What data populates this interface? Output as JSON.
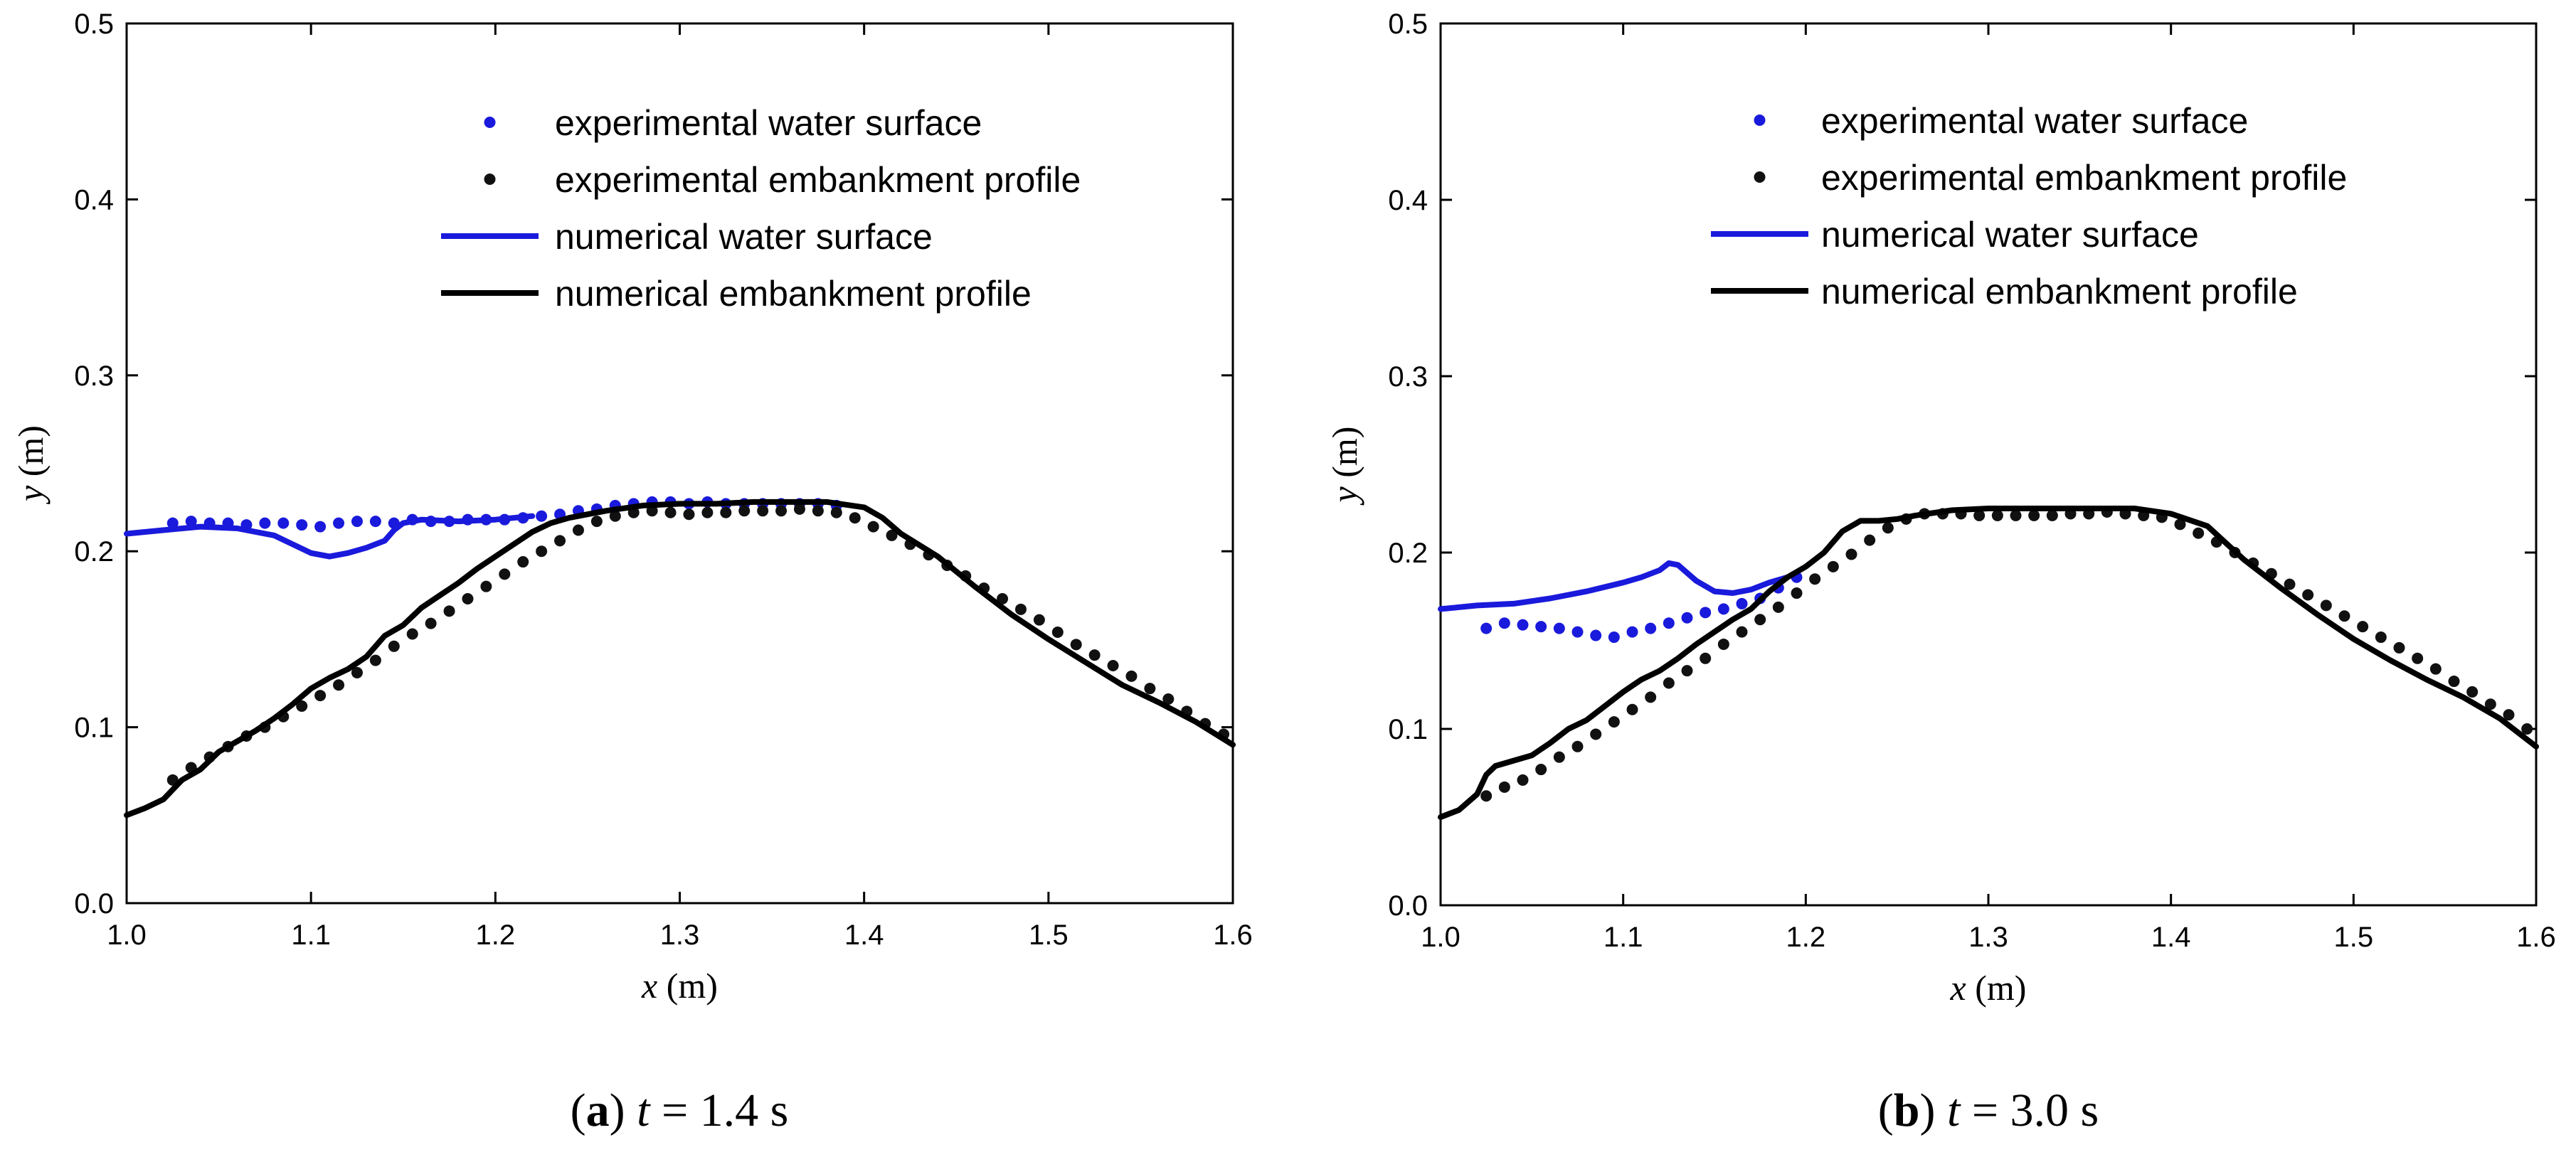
{
  "chart_data": [
    {
      "type": "line",
      "caption": {
        "label": "a",
        "time_var": "t",
        "time_rest": " = 1.4 s"
      },
      "xlabel": {
        "var": "x",
        "unit": " (m)"
      },
      "ylabel": {
        "var": "y",
        "unit": " (m)"
      },
      "xlim": [
        1.0,
        1.6
      ],
      "ylim": [
        0.0,
        0.5
      ],
      "xticks": [
        "1.0",
        "1.1",
        "1.2",
        "1.3",
        "1.4",
        "1.5",
        "1.6"
      ],
      "yticks": [
        "0.0",
        "0.1",
        "0.2",
        "0.3",
        "0.4",
        "0.5"
      ],
      "legend": [
        "experimental water surface",
        "experimental embankment profile",
        "numerical water surface",
        "numerical embankment profile"
      ],
      "series": [
        {
          "name": "experimental water surface",
          "kind": "points",
          "color": "#1a1adc",
          "x": [
            1.025,
            1.035,
            1.045,
            1.055,
            1.065,
            1.075,
            1.085,
            1.095,
            1.105,
            1.115,
            1.125,
            1.135,
            1.145,
            1.155,
            1.165,
            1.175,
            1.185,
            1.195,
            1.205,
            1.215,
            1.225,
            1.235,
            1.245,
            1.255,
            1.265,
            1.275,
            1.285,
            1.295,
            1.305,
            1.315,
            1.325,
            1.335,
            1.345,
            1.355,
            1.365,
            1.375,
            1.385
          ],
          "y": [
            0.216,
            0.217,
            0.216,
            0.216,
            0.215,
            0.216,
            0.216,
            0.215,
            0.214,
            0.216,
            0.217,
            0.217,
            0.216,
            0.218,
            0.217,
            0.217,
            0.218,
            0.218,
            0.218,
            0.219,
            0.22,
            0.221,
            0.223,
            0.224,
            0.226,
            0.227,
            0.228,
            0.228,
            0.227,
            0.228,
            0.227,
            0.227,
            0.227,
            0.227,
            0.227,
            0.227,
            0.226
          ]
        },
        {
          "name": "experimental embankment profile",
          "kind": "points",
          "color": "#111111",
          "x": [
            1.025,
            1.035,
            1.045,
            1.055,
            1.065,
            1.075,
            1.085,
            1.095,
            1.105,
            1.115,
            1.125,
            1.135,
            1.145,
            1.155,
            1.165,
            1.175,
            1.185,
            1.195,
            1.205,
            1.215,
            1.225,
            1.235,
            1.245,
            1.255,
            1.265,
            1.275,
            1.285,
            1.295,
            1.305,
            1.315,
            1.325,
            1.335,
            1.345,
            1.355,
            1.365,
            1.375,
            1.385,
            1.395,
            1.405,
            1.415,
            1.425,
            1.435,
            1.445,
            1.455,
            1.465,
            1.475,
            1.485,
            1.495,
            1.505,
            1.515,
            1.525,
            1.535,
            1.545,
            1.555,
            1.565,
            1.575,
            1.585,
            1.595
          ],
          "y": [
            0.07,
            0.077,
            0.083,
            0.089,
            0.095,
            0.1,
            0.106,
            0.112,
            0.118,
            0.124,
            0.131,
            0.138,
            0.146,
            0.153,
            0.159,
            0.166,
            0.173,
            0.18,
            0.187,
            0.194,
            0.2,
            0.206,
            0.212,
            0.217,
            0.22,
            0.222,
            0.223,
            0.222,
            0.221,
            0.222,
            0.222,
            0.223,
            0.223,
            0.223,
            0.224,
            0.223,
            0.222,
            0.219,
            0.214,
            0.209,
            0.204,
            0.198,
            0.192,
            0.186,
            0.179,
            0.173,
            0.167,
            0.161,
            0.154,
            0.147,
            0.141,
            0.135,
            0.129,
            0.122,
            0.116,
            0.109,
            0.102,
            0.096
          ]
        },
        {
          "name": "numerical water surface",
          "kind": "line",
          "color": "#1a1adc",
          "x": [
            1.0,
            1.02,
            1.04,
            1.06,
            1.08,
            1.09,
            1.1,
            1.11,
            1.12,
            1.13,
            1.14,
            1.145,
            1.15,
            1.16,
            1.18,
            1.2,
            1.22
          ],
          "y": [
            0.21,
            0.212,
            0.214,
            0.213,
            0.209,
            0.204,
            0.199,
            0.197,
            0.199,
            0.202,
            0.206,
            0.212,
            0.216,
            0.218,
            0.217,
            0.218,
            0.22
          ]
        },
        {
          "name": "numerical embankment profile",
          "kind": "line",
          "color": "#000000",
          "x": [
            1.0,
            1.01,
            1.02,
            1.03,
            1.04,
            1.05,
            1.06,
            1.07,
            1.08,
            1.09,
            1.1,
            1.11,
            1.12,
            1.13,
            1.14,
            1.15,
            1.16,
            1.17,
            1.18,
            1.19,
            1.2,
            1.21,
            1.22,
            1.23,
            1.24,
            1.25,
            1.26,
            1.28,
            1.3,
            1.32,
            1.34,
            1.36,
            1.38,
            1.4,
            1.41,
            1.42,
            1.44,
            1.46,
            1.48,
            1.5,
            1.52,
            1.54,
            1.56,
            1.58,
            1.6
          ],
          "y": [
            0.05,
            0.054,
            0.059,
            0.07,
            0.076,
            0.086,
            0.092,
            0.098,
            0.105,
            0.113,
            0.122,
            0.128,
            0.133,
            0.14,
            0.152,
            0.158,
            0.168,
            0.175,
            0.182,
            0.19,
            0.197,
            0.204,
            0.211,
            0.216,
            0.219,
            0.221,
            0.223,
            0.226,
            0.227,
            0.227,
            0.228,
            0.228,
            0.228,
            0.225,
            0.219,
            0.21,
            0.197,
            0.18,
            0.164,
            0.15,
            0.137,
            0.124,
            0.114,
            0.103,
            0.09
          ]
        }
      ]
    },
    {
      "type": "line",
      "caption": {
        "label": "b",
        "time_var": "t",
        "time_rest": " = 3.0 s"
      },
      "xlabel": {
        "var": "x",
        "unit": " (m)"
      },
      "ylabel": {
        "var": "y",
        "unit": " (m)"
      },
      "xlim": [
        1.0,
        1.6
      ],
      "ylim": [
        0.0,
        0.5
      ],
      "xticks": [
        "1.0",
        "1.1",
        "1.2",
        "1.3",
        "1.4",
        "1.5",
        "1.6"
      ],
      "yticks": [
        "0.0",
        "0.1",
        "0.2",
        "0.3",
        "0.4",
        "0.5"
      ],
      "legend": [
        "experimental water surface",
        "experimental embankment profile",
        "numerical water surface",
        "numerical embankment profile"
      ],
      "series": [
        {
          "name": "experimental water surface",
          "kind": "points",
          "color": "#1a1adc",
          "x": [
            1.025,
            1.035,
            1.045,
            1.055,
            1.065,
            1.075,
            1.085,
            1.095,
            1.105,
            1.115,
            1.125,
            1.135,
            1.145,
            1.155,
            1.165,
            1.175,
            1.185,
            1.195
          ],
          "y": [
            0.157,
            0.16,
            0.159,
            0.158,
            0.157,
            0.155,
            0.153,
            0.152,
            0.155,
            0.157,
            0.16,
            0.163,
            0.166,
            0.168,
            0.171,
            0.174,
            0.18,
            0.186
          ]
        },
        {
          "name": "experimental embankment profile",
          "kind": "points",
          "color": "#111111",
          "x": [
            1.025,
            1.035,
            1.045,
            1.055,
            1.065,
            1.075,
            1.085,
            1.095,
            1.105,
            1.115,
            1.125,
            1.135,
            1.145,
            1.155,
            1.165,
            1.175,
            1.185,
            1.195,
            1.205,
            1.215,
            1.225,
            1.235,
            1.245,
            1.255,
            1.265,
            1.275,
            1.285,
            1.295,
            1.305,
            1.315,
            1.325,
            1.335,
            1.345,
            1.355,
            1.365,
            1.375,
            1.385,
            1.395,
            1.405,
            1.415,
            1.425,
            1.435,
            1.445,
            1.455,
            1.465,
            1.475,
            1.485,
            1.495,
            1.505,
            1.515,
            1.525,
            1.535,
            1.545,
            1.555,
            1.565,
            1.575,
            1.585,
            1.595
          ],
          "y": [
            0.062,
            0.067,
            0.071,
            0.077,
            0.084,
            0.09,
            0.097,
            0.104,
            0.111,
            0.118,
            0.126,
            0.133,
            0.14,
            0.148,
            0.155,
            0.162,
            0.169,
            0.177,
            0.185,
            0.192,
            0.199,
            0.207,
            0.214,
            0.219,
            0.222,
            0.222,
            0.222,
            0.221,
            0.221,
            0.221,
            0.221,
            0.221,
            0.222,
            0.222,
            0.223,
            0.222,
            0.221,
            0.22,
            0.216,
            0.211,
            0.206,
            0.2,
            0.194,
            0.188,
            0.182,
            0.176,
            0.17,
            0.164,
            0.158,
            0.152,
            0.146,
            0.14,
            0.134,
            0.127,
            0.121,
            0.114,
            0.108,
            0.1
          ]
        },
        {
          "name": "numerical water surface",
          "kind": "line",
          "color": "#1a1adc",
          "x": [
            1.0,
            1.02,
            1.04,
            1.06,
            1.08,
            1.1,
            1.11,
            1.12,
            1.125,
            1.13,
            1.14,
            1.15,
            1.16,
            1.17,
            1.18,
            1.19
          ],
          "y": [
            0.168,
            0.17,
            0.171,
            0.174,
            0.178,
            0.183,
            0.186,
            0.19,
            0.194,
            0.193,
            0.184,
            0.178,
            0.177,
            0.179,
            0.183,
            0.186
          ]
        },
        {
          "name": "numerical embankment profile",
          "kind": "line",
          "color": "#000000",
          "x": [
            1.0,
            1.01,
            1.02,
            1.025,
            1.03,
            1.04,
            1.05,
            1.06,
            1.07,
            1.08,
            1.09,
            1.1,
            1.11,
            1.12,
            1.13,
            1.14,
            1.15,
            1.16,
            1.17,
            1.18,
            1.19,
            1.2,
            1.21,
            1.22,
            1.23,
            1.24,
            1.25,
            1.26,
            1.28,
            1.3,
            1.32,
            1.34,
            1.36,
            1.38,
            1.4,
            1.42,
            1.44,
            1.46,
            1.48,
            1.5,
            1.52,
            1.54,
            1.56,
            1.58,
            1.6
          ],
          "y": [
            0.05,
            0.054,
            0.063,
            0.074,
            0.079,
            0.082,
            0.085,
            0.092,
            0.1,
            0.105,
            0.113,
            0.121,
            0.128,
            0.133,
            0.14,
            0.148,
            0.155,
            0.162,
            0.168,
            0.178,
            0.186,
            0.192,
            0.2,
            0.212,
            0.218,
            0.218,
            0.219,
            0.221,
            0.224,
            0.225,
            0.225,
            0.225,
            0.225,
            0.225,
            0.222,
            0.215,
            0.196,
            0.18,
            0.165,
            0.151,
            0.139,
            0.128,
            0.118,
            0.106,
            0.09
          ]
        }
      ]
    }
  ]
}
